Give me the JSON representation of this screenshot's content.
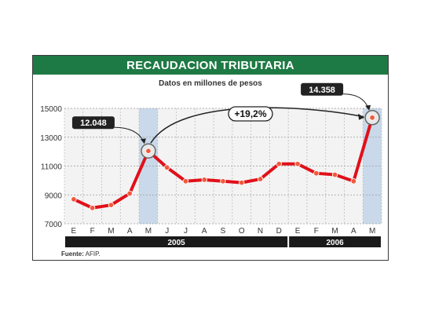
{
  "title": "RECAUDACION TRIBUTARIA",
  "subtitle": "Datos en millones de pesos",
  "source_label": "Fuente:",
  "source_value": "AFIP.",
  "annotations": {
    "start_value": "12.048",
    "end_value": "14.358",
    "change": "+19,2%"
  },
  "colors": {
    "header": "#1e7a44",
    "line": "#e0101a",
    "marker": "#f05a3c",
    "highlight": "#c9d9ea",
    "year_bar": "#1a1a1a",
    "label_box": "#222222"
  },
  "chart_data": {
    "type": "line",
    "title": "RECAUDACION TRIBUTARIA",
    "subtitle": "Datos en millones de pesos",
    "x": [
      "E",
      "F",
      "M",
      "A",
      "M",
      "J",
      "J",
      "A",
      "S",
      "O",
      "N",
      "D",
      "E",
      "F",
      "M",
      "A",
      "M"
    ],
    "years": [
      {
        "label": "2005",
        "from": 0,
        "to": 11
      },
      {
        "label": "2006",
        "from": 12,
        "to": 16
      }
    ],
    "series": [
      {
        "values": [
          8700,
          8100,
          8300,
          9100,
          12048,
          10900,
          9950,
          10050,
          9950,
          9850,
          10100,
          11150,
          11150,
          10500,
          10400,
          9950,
          14358
        ]
      }
    ],
    "ylim": [
      7000,
      15000
    ],
    "yticks": [
      7000,
      9000,
      11000,
      13000,
      15000
    ],
    "ytick_labels": [
      "7000",
      "9000",
      "11000",
      "13000",
      "15000"
    ],
    "grid": true,
    "highlighted_points": [
      4,
      16
    ]
  }
}
